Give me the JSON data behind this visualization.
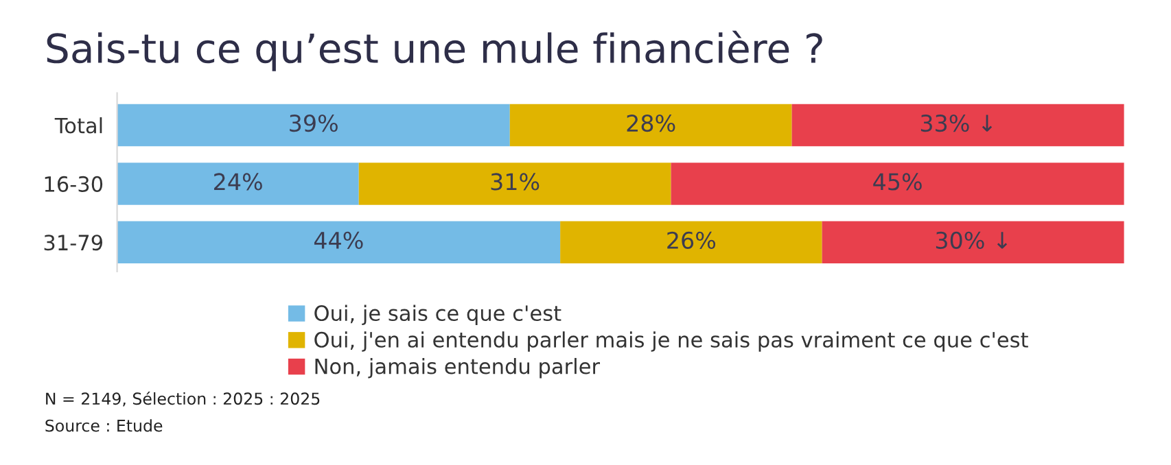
{
  "chart_data": {
    "type": "bar",
    "orientation": "horizontal",
    "stacked": true,
    "title": "Sais-tu ce qu’est une mule financière ?",
    "categories": [
      "Total",
      "16-30",
      "31-79"
    ],
    "series": [
      {
        "name": "Oui, je sais ce que c'est",
        "color": "#74bbe6",
        "values": [
          39,
          24,
          44
        ],
        "value_labels": [
          "39%",
          "24%",
          "44%"
        ]
      },
      {
        "name": "Oui, j'en ai entendu parler mais je ne sais pas vraiment ce que c'est",
        "color": "#e0b400",
        "values": [
          28,
          31,
          26
        ],
        "value_labels": [
          "28%",
          "31%",
          "26%"
        ]
      },
      {
        "name": "Non, jamais entendu parler",
        "color": "#e8404c",
        "values": [
          33,
          45,
          30
        ],
        "value_labels": [
          "33% ↓",
          "45%",
          "30% ↓"
        ]
      }
    ],
    "legend": "bottom",
    "grid": false,
    "tick_labels": "y",
    "annotations": [
      "N = 2149, Sélection : 2025 : 2025",
      "Source : Etude"
    ]
  }
}
